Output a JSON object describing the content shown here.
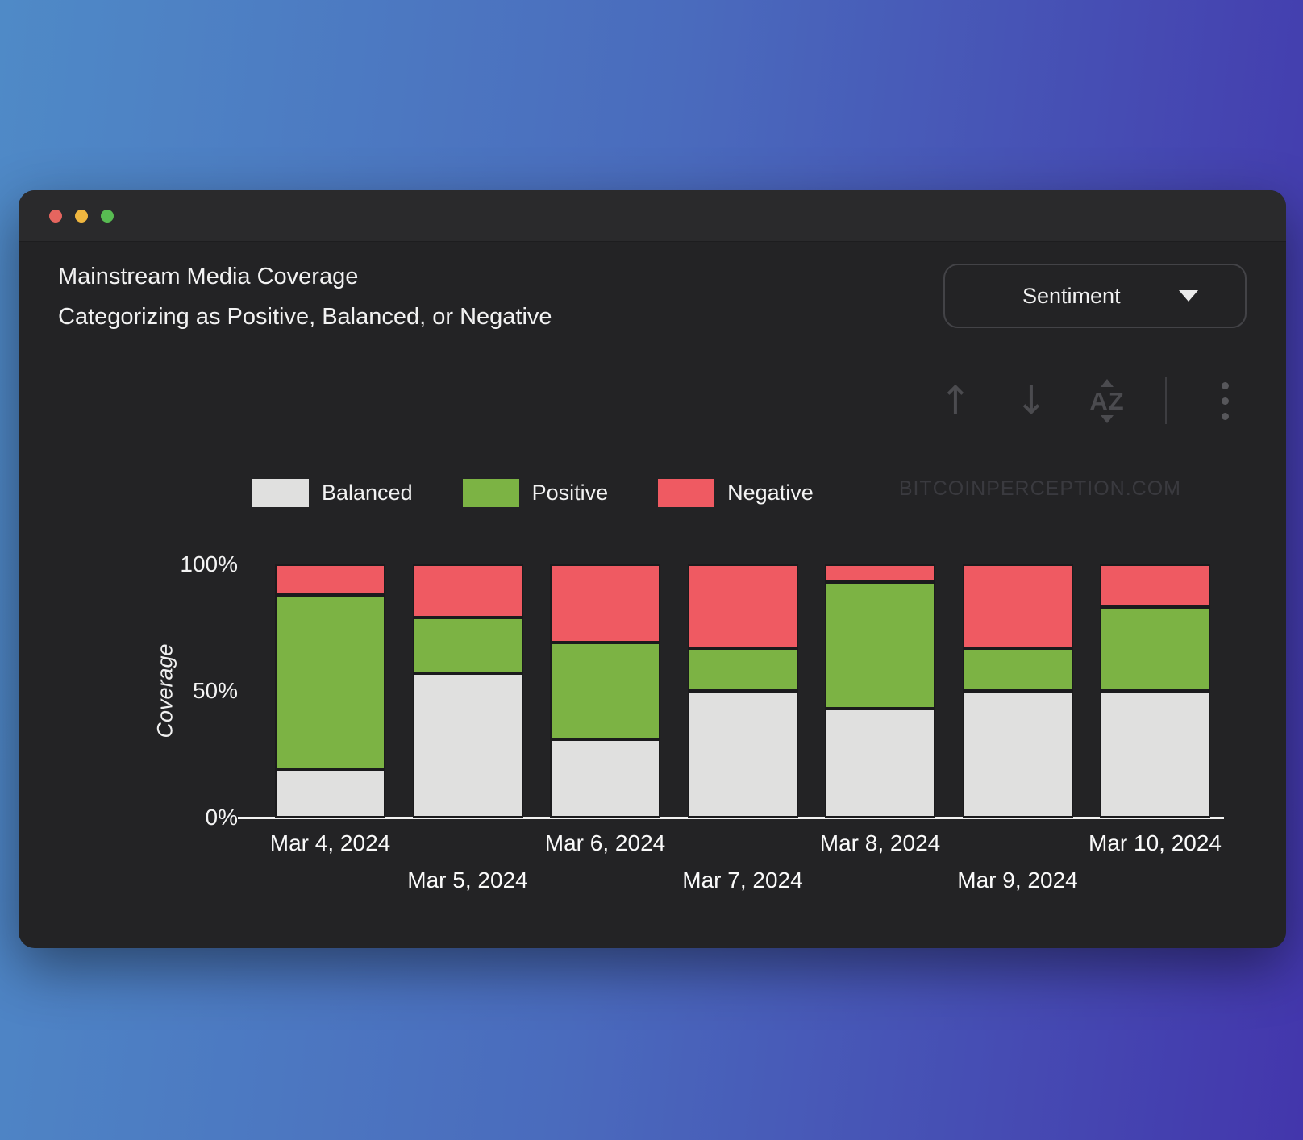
{
  "window": {
    "header": {
      "title": "Mainstream Media Coverage",
      "subtitle": "Categorizing as Positive, Balanced, or Negative"
    },
    "controls": {
      "dropdown_label": "Sentiment",
      "sort_az_text": "AZ"
    },
    "watermark": "BITCOINPERCEPTION.COM",
    "colors": {
      "window_bg": "#232325",
      "titlebar_bg": "#2a2a2c",
      "accent_balanced": "#e0e0df",
      "accent_positive": "#7cb344",
      "accent_negative": "#ef5a62"
    }
  },
  "chart_data": {
    "type": "bar",
    "subtype": "stacked-100-percent",
    "title": "Mainstream Media Coverage",
    "subtitle": "Categorizing as Positive, Balanced, or Negative",
    "categories": [
      "Mar 4, 2024",
      "Mar 5, 2024",
      "Mar 6, 2024",
      "Mar 7, 2024",
      "Mar 8, 2024",
      "Mar 9, 2024",
      "Mar 10, 2024"
    ],
    "series": [
      {
        "name": "Balanced",
        "color": "#e0e0df",
        "values": [
          19,
          57,
          31,
          50,
          43,
          50,
          50
        ]
      },
      {
        "name": "Positive",
        "color": "#7cb344",
        "values": [
          69,
          22,
          38,
          17,
          50,
          17,
          33
        ]
      },
      {
        "name": "Negative",
        "color": "#ef5a62",
        "values": [
          12,
          21,
          31,
          33,
          7,
          33,
          17
        ]
      }
    ],
    "units": "%",
    "xlabel": "",
    "ylabel": "Coverage",
    "ylim": [
      0,
      100
    ],
    "yticks": [
      {
        "label": "100%",
        "value": 100
      },
      {
        "label": "50%",
        "value": 50
      },
      {
        "label": "0%",
        "value": 0
      }
    ],
    "grid": false,
    "legend_position": "top",
    "x_label_layout": "staggered-two-rows"
  }
}
